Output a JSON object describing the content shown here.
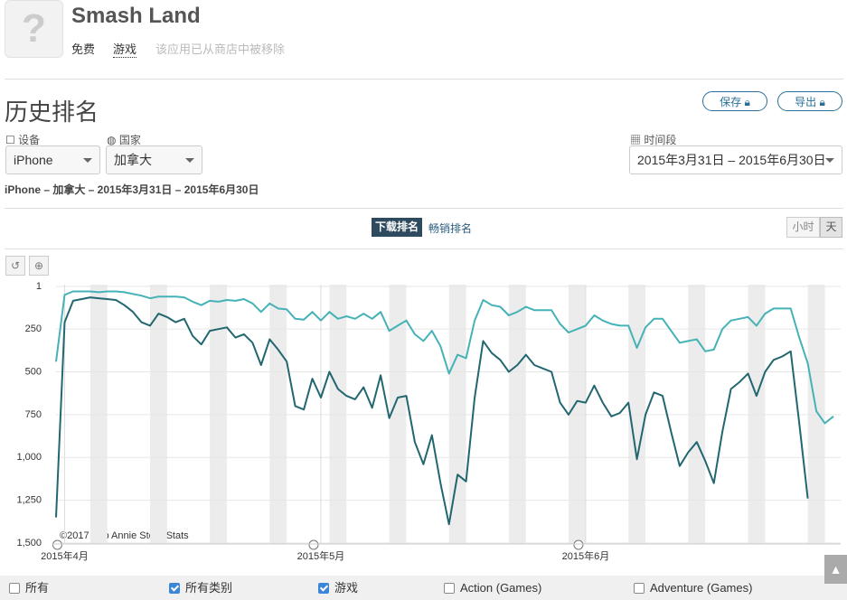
{
  "header": {
    "title": "Smash Land",
    "price": "免费",
    "category": "游戏",
    "notice": "该应用已从商店中被移除"
  },
  "section_title": "历史排名",
  "buttons": [
    "保存",
    "导出"
  ],
  "filters": {
    "device_label": "设备",
    "device": "iPhone",
    "country_label": "国家",
    "country": "加拿大",
    "period_label": "时间段",
    "period": "2015年3月31日 – 2015年6月30日"
  },
  "summary": "iPhone – 加拿大 – 2015年3月31日 – 2015年6月30日",
  "tabs": [
    "下载排名",
    "畅销排名"
  ],
  "granularity": [
    "小时",
    "天"
  ],
  "chart_data": {
    "type": "line",
    "x": [
      "2015-03-31",
      "2015-04-01",
      "2015-04-02",
      "2015-04-03",
      "2015-04-04",
      "2015-04-05",
      "2015-04-06",
      "2015-04-07",
      "2015-04-08",
      "2015-04-09",
      "2015-04-10",
      "2015-04-11",
      "2015-04-12",
      "2015-04-13",
      "2015-04-14",
      "2015-04-15",
      "2015-04-16",
      "2015-04-17",
      "2015-04-18",
      "2015-04-19",
      "2015-04-20",
      "2015-04-21",
      "2015-04-22",
      "2015-04-23",
      "2015-04-24",
      "2015-04-25",
      "2015-04-26",
      "2015-04-27",
      "2015-04-28",
      "2015-04-29",
      "2015-04-30",
      "2015-05-01",
      "2015-05-02",
      "2015-05-03",
      "2015-05-04",
      "2015-05-05",
      "2015-05-06",
      "2015-05-07",
      "2015-05-08",
      "2015-05-09",
      "2015-05-10",
      "2015-05-11",
      "2015-05-12",
      "2015-05-13",
      "2015-05-14",
      "2015-05-15",
      "2015-05-16",
      "2015-05-17",
      "2015-05-18",
      "2015-05-19",
      "2015-05-20",
      "2015-05-21",
      "2015-05-22",
      "2015-05-23",
      "2015-05-24",
      "2015-05-25",
      "2015-05-26",
      "2015-05-27",
      "2015-05-28",
      "2015-05-29",
      "2015-05-30",
      "2015-05-31",
      "2015-06-01",
      "2015-06-02",
      "2015-06-03",
      "2015-06-04",
      "2015-06-05",
      "2015-06-06",
      "2015-06-07",
      "2015-06-08",
      "2015-06-09",
      "2015-06-10",
      "2015-06-11",
      "2015-06-12",
      "2015-06-13",
      "2015-06-14",
      "2015-06-15",
      "2015-06-16",
      "2015-06-17",
      "2015-06-18",
      "2015-06-19",
      "2015-06-20",
      "2015-06-21",
      "2015-06-22",
      "2015-06-23",
      "2015-06-24",
      "2015-06-25",
      "2015-06-26",
      "2015-06-27",
      "2015-06-28",
      "2015-06-29",
      "2015-06-30"
    ],
    "xlim": [
      "2015-03-31",
      "2015-06-30"
    ],
    "xticks": [
      {
        "value": "2015-04-01",
        "label": "2015年4月"
      },
      {
        "value": "2015-05-01",
        "label": "2015年5月"
      },
      {
        "value": "2015-06-01",
        "label": "2015年6月"
      }
    ],
    "ylim": [
      1,
      1500
    ],
    "y_reversed": true,
    "yticks": [
      1,
      250,
      500,
      750,
      {
        "value": 1000,
        "label": "1,000"
      },
      {
        "value": 1250,
        "label": "1,250"
      },
      {
        "value": 1500,
        "label": "1,500"
      }
    ],
    "grid": true,
    "weekend_shading": true,
    "credit": "©2017 App Annie Store Stats",
    "series": [
      {
        "name": "所有类别",
        "color": "#22676f",
        "checked": true,
        "values": [
          1350,
          210,
          85,
          75,
          65,
          70,
          75,
          80,
          110,
          150,
          210,
          230,
          160,
          180,
          210,
          190,
          290,
          340,
          260,
          250,
          240,
          300,
          280,
          330,
          460,
          310,
          370,
          440,
          700,
          720,
          540,
          650,
          500,
          600,
          640,
          660,
          590,
          710,
          520,
          770,
          650,
          640,
          910,
          1040,
          870,
          1150,
          1390,
          1100,
          1140,
          650,
          320,
          390,
          430,
          500,
          460,
          400,
          460,
          480,
          500,
          680,
          750,
          670,
          680,
          580,
          680,
          760,
          740,
          680,
          1010,
          750,
          620,
          640,
          850,
          1050,
          970,
          910,
          1020,
          1150,
          850,
          600,
          560,
          510,
          640,
          500,
          430,
          410,
          380,
          800,
          1240,
          null,
          null,
          null
        ]
      },
      {
        "name": "游戏",
        "color": "#44b2b6",
        "checked": true,
        "values": [
          440,
          50,
          30,
          30,
          30,
          35,
          30,
          30,
          35,
          45,
          55,
          70,
          60,
          60,
          60,
          65,
          90,
          110,
          85,
          90,
          80,
          85,
          75,
          100,
          150,
          100,
          130,
          135,
          190,
          195,
          150,
          200,
          150,
          190,
          175,
          190,
          160,
          190,
          150,
          260,
          230,
          200,
          280,
          320,
          260,
          350,
          510,
          400,
          420,
          200,
          80,
          110,
          120,
          170,
          150,
          120,
          140,
          140,
          140,
          220,
          270,
          250,
          230,
          170,
          200,
          220,
          230,
          230,
          360,
          240,
          190,
          190,
          260,
          330,
          320,
          310,
          380,
          370,
          250,
          200,
          190,
          180,
          230,
          160,
          130,
          130,
          130,
          300,
          450,
          730,
          800,
          760
        ]
      }
    ],
    "legend_unchecked": [
      "所有",
      "Action (Games)",
      "Adventure (Games)"
    ]
  }
}
